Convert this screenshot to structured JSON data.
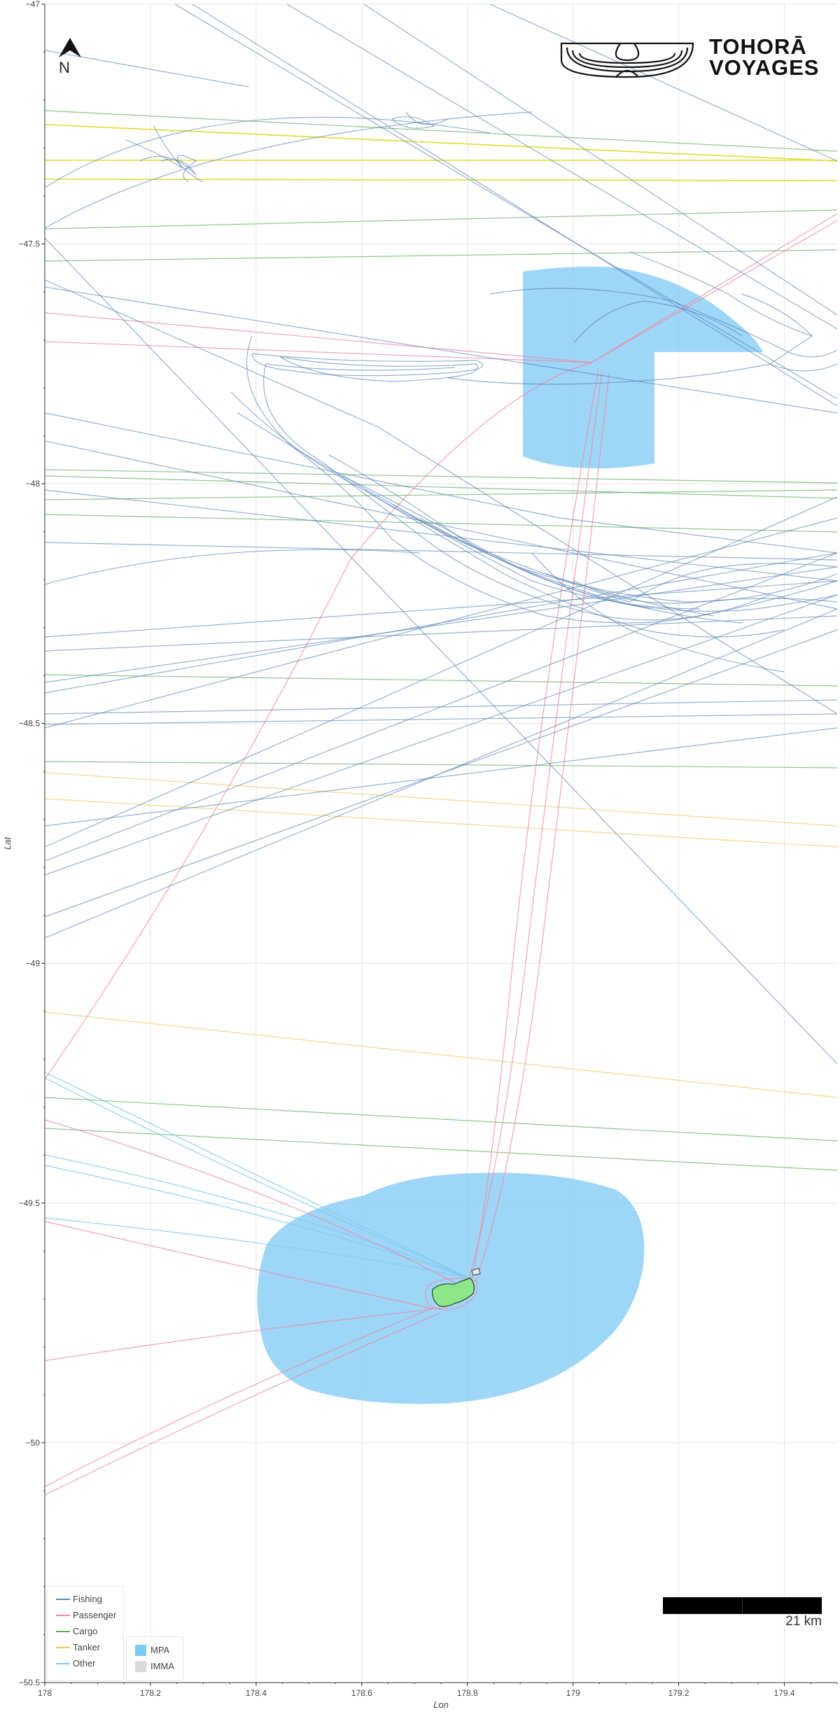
{
  "map": {
    "x_axis_label": "Lon",
    "y_axis_label": "Lat",
    "x_ticks": [
      "178",
      "178.2",
      "178.4",
      "178.6",
      "178.8",
      "179",
      "179.2",
      "179.4"
    ],
    "y_ticks": [
      "−47",
      "−47.5",
      "−48",
      "−48.5",
      "−49",
      "−49.5",
      "−50",
      "−50.5"
    ],
    "x_range": [
      178,
      179.5
    ],
    "y_range": [
      -50.5,
      -47
    ]
  },
  "north_arrow": {
    "label": "N",
    "icon": "north-arrow-icon"
  },
  "brand": {
    "line1": "TOHORĀ",
    "line2": "VOYAGES",
    "icon": "tohora-logo-icon"
  },
  "scale_bar": {
    "label": "21 km"
  },
  "legend": {
    "lines": [
      {
        "label": "Fishing",
        "color": "#5b84b8"
      },
      {
        "label": "Passenger",
        "color": "#f08aa0"
      },
      {
        "label": "Cargo",
        "color": "#5aac5a"
      },
      {
        "label": "Tanker",
        "color": "#e8c85a"
      },
      {
        "label": "Other",
        "color": "#7ec9f0"
      }
    ],
    "areas": [
      {
        "label": "MPA",
        "color": "#7ec8f5"
      },
      {
        "label": "IMMA",
        "color": "#d9d9d9"
      }
    ]
  },
  "colors": {
    "fishing": "#5b84b8",
    "passenger": "#f08aa0",
    "cargo": "#5aac5a",
    "tanker": "#e8c85a",
    "yellow_lane": "#dede30",
    "other": "#7ec9f0",
    "mpa": "#7ec8f5",
    "island": "#8ee68a"
  }
}
